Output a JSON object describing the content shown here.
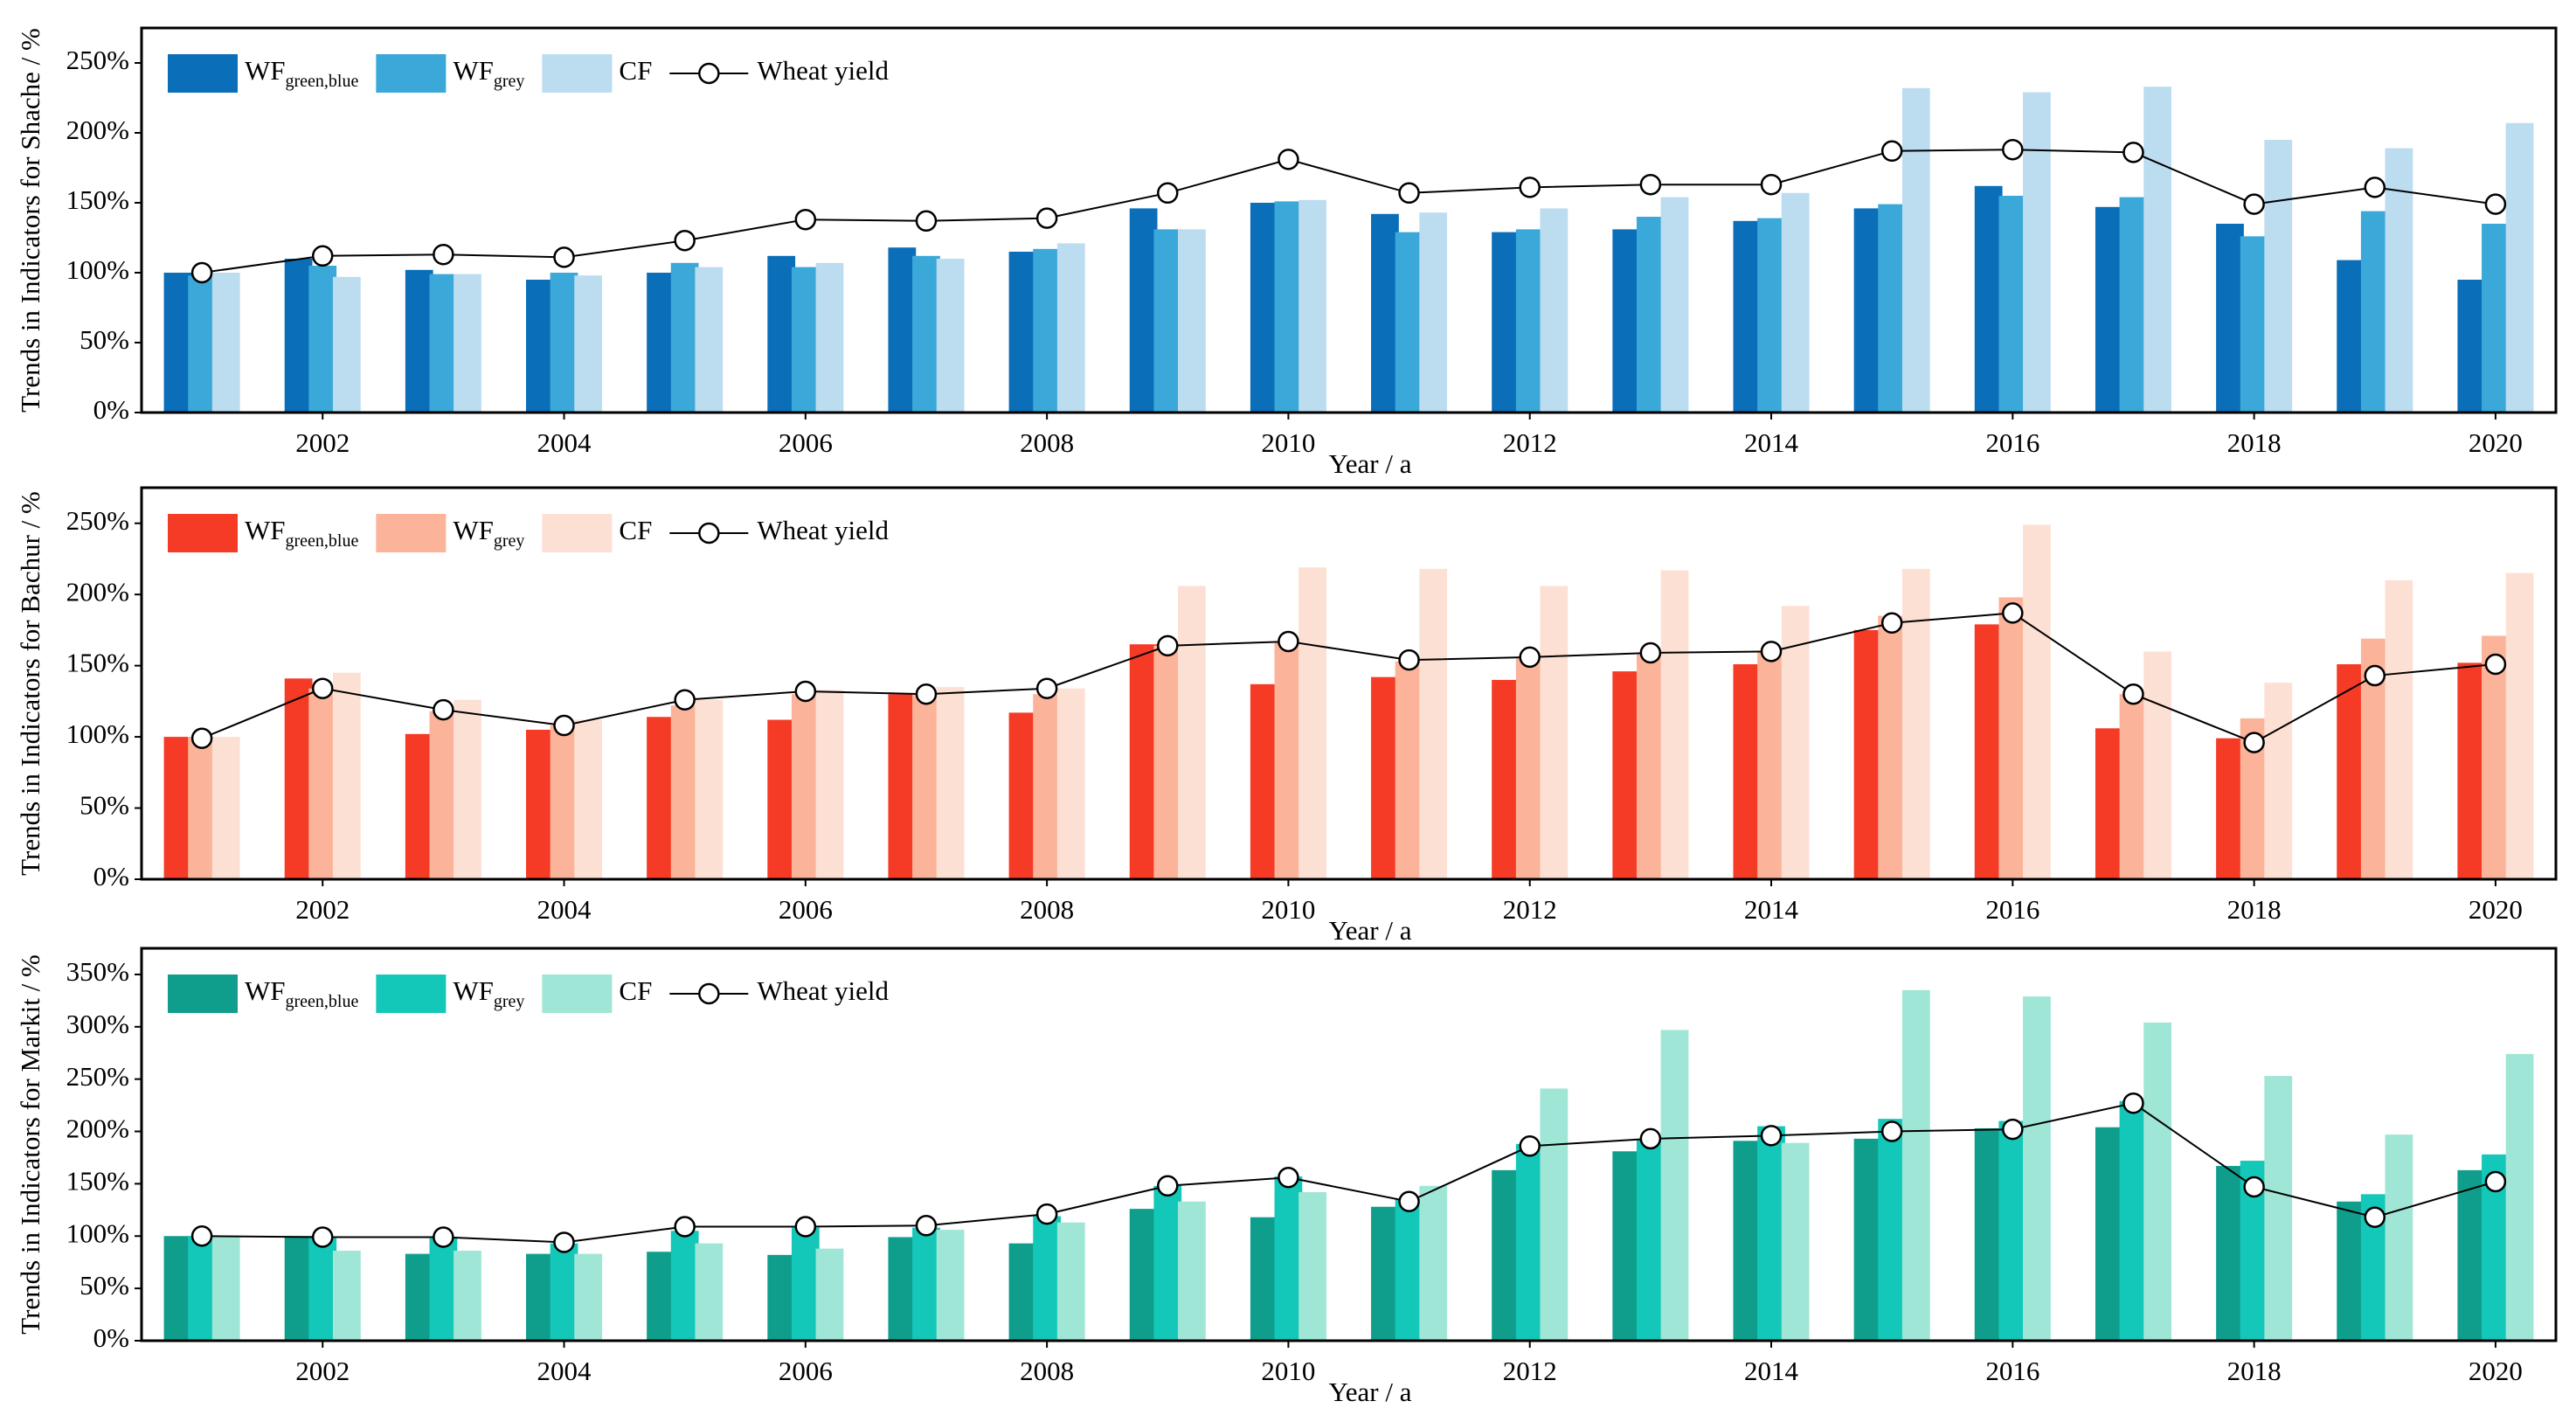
{
  "chart_data": [
    {
      "type": "bar",
      "ylabel": "Trends in Indicators for Shache / %",
      "xlabel": "Year / a",
      "legend": "upper left",
      "categories": [
        null,
        "2002",
        null,
        "2004",
        null,
        "2006",
        null,
        "2008",
        null,
        "2010",
        null,
        "2012",
        null,
        "2014",
        null,
        "2016",
        null,
        "2018",
        null,
        "2020"
      ],
      "ylim": [
        0,
        275
      ],
      "yticks": [
        {
          "value": 0,
          "label": "0%"
        },
        {
          "value": 50,
          "label": "50%"
        },
        {
          "value": 100,
          "label": "100%"
        },
        {
          "value": 150,
          "label": "150%"
        },
        {
          "value": 200,
          "label": "200%"
        },
        {
          "value": 250,
          "label": "250%"
        }
      ],
      "series": [
        {
          "name": "WF",
          "subscript": "green,blue",
          "type": "bar",
          "color": "#0a6eb8",
          "values": [
            100,
            110,
            102,
            95,
            100,
            112,
            118,
            115,
            146,
            150,
            142,
            129,
            131,
            137,
            146,
            162,
            147,
            135,
            109,
            95
          ]
        },
        {
          "name": "WF",
          "subscript": "grey",
          "type": "bar",
          "color": "#3aa8d8",
          "values": [
            98,
            105,
            99,
            100,
            107,
            104,
            112,
            117,
            131,
            151,
            129,
            131,
            140,
            139,
            149,
            155,
            154,
            126,
            144,
            135
          ]
        },
        {
          "name": "CF",
          "type": "bar",
          "color": "#bcdcf0",
          "values": [
            100,
            97,
            99,
            98,
            104,
            107,
            110,
            121,
            131,
            152,
            143,
            146,
            154,
            157,
            232,
            229,
            233,
            195,
            189,
            207
          ]
        },
        {
          "name": "Wheat yield",
          "type": "line",
          "color": "#000000",
          "values": [
            100,
            112,
            113,
            111,
            123,
            138,
            137,
            139,
            157,
            181,
            157,
            161,
            163,
            163,
            187,
            188,
            186,
            149,
            161,
            149
          ]
        }
      ]
    },
    {
      "type": "bar",
      "ylabel": "Trends in Indicators for Bachur / %",
      "xlabel": "Year / a",
      "legend": "upper left",
      "categories": [
        null,
        "2002",
        null,
        "2004",
        null,
        "2006",
        null,
        "2008",
        null,
        "2010",
        null,
        "2012",
        null,
        "2014",
        null,
        "2016",
        null,
        "2018",
        null,
        "2020"
      ],
      "ylim": [
        0,
        275
      ],
      "yticks": [
        {
          "value": 0,
          "label": "0%"
        },
        {
          "value": 50,
          "label": "50%"
        },
        {
          "value": 100,
          "label": "100%"
        },
        {
          "value": 150,
          "label": "150%"
        },
        {
          "value": 200,
          "label": "200%"
        },
        {
          "value": 250,
          "label": "250%"
        }
      ],
      "series": [
        {
          "name": "WF",
          "subscript": "green,blue",
          "type": "bar",
          "color": "#f53a26",
          "values": [
            100,
            141,
            102,
            105,
            114,
            112,
            130,
            117,
            165,
            137,
            142,
            140,
            146,
            151,
            175,
            179,
            106,
            99,
            151,
            152
          ]
        },
        {
          "name": "WF",
          "subscript": "grey",
          "type": "bar",
          "color": "#fbb49a",
          "values": [
            100,
            134,
            118,
            108,
            122,
            130,
            130,
            130,
            164,
            166,
            153,
            155,
            158,
            160,
            185,
            198,
            130,
            113,
            169,
            171
          ]
        },
        {
          "name": "CF",
          "type": "bar",
          "color": "#fde0d4",
          "values": [
            100,
            145,
            126,
            112,
            126,
            133,
            135,
            134,
            206,
            219,
            218,
            206,
            217,
            192,
            218,
            249,
            160,
            138,
            210,
            215
          ]
        },
        {
          "name": "Wheat yield",
          "type": "line",
          "color": "#000000",
          "values": [
            99,
            134,
            119,
            108,
            126,
            132,
            130,
            134,
            164,
            167,
            154,
            156,
            159,
            160,
            180,
            187,
            130,
            96,
            143,
            151
          ]
        }
      ]
    },
    {
      "type": "bar",
      "ylabel": "Trends in Indicators for Markit / %",
      "xlabel": "Year / a",
      "legend": "upper left",
      "categories": [
        null,
        "2002",
        null,
        "2004",
        null,
        "2006",
        null,
        "2008",
        null,
        "2010",
        null,
        "2012",
        null,
        "2014",
        null,
        "2016",
        null,
        "2018",
        null,
        "2020"
      ],
      "ylim": [
        0,
        375
      ],
      "yticks": [
        {
          "value": 0,
          "label": "0%"
        },
        {
          "value": 50,
          "label": "50%"
        },
        {
          "value": 100,
          "label": "100%"
        },
        {
          "value": 150,
          "label": "150%"
        },
        {
          "value": 200,
          "label": "200%"
        },
        {
          "value": 250,
          "label": "250%"
        },
        {
          "value": 300,
          "label": "300%"
        },
        {
          "value": 350,
          "label": "350%"
        }
      ],
      "series": [
        {
          "name": "WF",
          "subscript": "green,blue",
          "type": "bar",
          "color": "#0f9e8c",
          "values": [
            100,
            100,
            83,
            83,
            85,
            82,
            99,
            93,
            126,
            118,
            128,
            163,
            181,
            191,
            193,
            203,
            204,
            167,
            133,
            163
          ]
        },
        {
          "name": "WF",
          "subscript": "grey",
          "type": "bar",
          "color": "#13c8b8",
          "values": [
            100,
            98,
            98,
            93,
            105,
            108,
            108,
            119,
            148,
            157,
            135,
            188,
            192,
            205,
            212,
            210,
            229,
            172,
            140,
            178
          ]
        },
        {
          "name": "CF",
          "type": "bar",
          "color": "#a0e6d6",
          "values": [
            100,
            86,
            86,
            83,
            93,
            88,
            106,
            113,
            133,
            142,
            148,
            241,
            297,
            189,
            335,
            329,
            304,
            253,
            197,
            274
          ]
        },
        {
          "name": "Wheat yield",
          "type": "line",
          "color": "#000000",
          "values": [
            100,
            99,
            99,
            94,
            109,
            109,
            110,
            121,
            148,
            156,
            133,
            186,
            193,
            196,
            200,
            202,
            227,
            147,
            118,
            152
          ]
        }
      ]
    }
  ]
}
